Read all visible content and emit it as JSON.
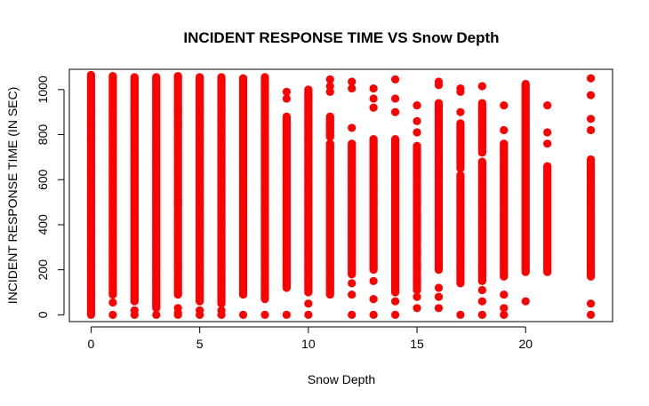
{
  "chart_data": {
    "type": "scatter",
    "title": "INCIDENT RESPONSE TIME VS Snow Depth",
    "xlabel": "Snow Depth",
    "ylabel": "INCIDENT RESPONSE TIME (IN SEC)",
    "xlim": [
      -1,
      24
    ],
    "ylim": [
      -30,
      1090
    ],
    "x_ticks": [
      0,
      5,
      10,
      15,
      20
    ],
    "y_ticks": [
      0,
      200,
      400,
      600,
      800,
      1000
    ],
    "grid": false,
    "legend": "none",
    "point_color": "#ff0000",
    "series": [
      {
        "columns": [
          {
            "x": 0,
            "ranges": [
              [
                0,
                1065
              ]
            ],
            "points": []
          },
          {
            "x": 1,
            "ranges": [
              [
                90,
                1060
              ]
            ],
            "points": [
              55,
              0
            ]
          },
          {
            "x": 2,
            "ranges": [
              [
                60,
                1055
              ]
            ],
            "points": [
              20,
              0
            ]
          },
          {
            "x": 3,
            "ranges": [
              [
                30,
                1055
              ]
            ],
            "points": [
              0
            ]
          },
          {
            "x": 4,
            "ranges": [
              [
                90,
                1060
              ]
            ],
            "points": [
              30,
              10,
              0
            ]
          },
          {
            "x": 5,
            "ranges": [
              [
                60,
                1055
              ]
            ],
            "points": [
              20,
              0
            ]
          },
          {
            "x": 6,
            "ranges": [
              [
                50,
                1055
              ]
            ],
            "points": [
              20,
              0
            ]
          },
          {
            "x": 7,
            "ranges": [
              [
                90,
                1050
              ]
            ],
            "points": [
              0
            ]
          },
          {
            "x": 8,
            "ranges": [
              [
                70,
                1055
              ]
            ],
            "points": [
              0
            ]
          },
          {
            "x": 9,
            "ranges": [
              [
                120,
                880
              ]
            ],
            "points": [
              990,
              960,
              0
            ]
          },
          {
            "x": 10,
            "ranges": [
              [
                100,
                1000
              ]
            ],
            "points": [
              50,
              0
            ]
          },
          {
            "x": 11,
            "ranges": [
              [
                90,
                760
              ],
              [
                790,
                880
              ]
            ],
            "points": [
              1045,
              1015,
              990
            ]
          },
          {
            "x": 12,
            "ranges": [
              [
                180,
                760
              ]
            ],
            "points": [
              1035,
              1005,
              830,
              140,
              90,
              0
            ]
          },
          {
            "x": 13,
            "ranges": [
              [
                200,
                780
              ]
            ],
            "points": [
              1005,
              960,
              920,
              150,
              70,
              0
            ]
          },
          {
            "x": 14,
            "ranges": [
              [
                100,
                780
              ]
            ],
            "points": [
              1045,
              960,
              900,
              60,
              0
            ]
          },
          {
            "x": 15,
            "ranges": [
              [
                110,
                750
              ]
            ],
            "points": [
              930,
              860,
              810,
              80,
              30
            ]
          },
          {
            "x": 16,
            "ranges": [
              [
                200,
                940
              ]
            ],
            "points": [
              1035,
              1020,
              120,
              80,
              30
            ]
          },
          {
            "x": 17,
            "ranges": [
              [
                140,
                620
              ],
              [
                650,
                850
              ]
            ],
            "points": [
              1005,
              990,
              900,
              0
            ]
          },
          {
            "x": 18,
            "ranges": [
              [
                150,
                680
              ],
              [
                720,
                940
              ]
            ],
            "points": [
              1015,
              110,
              60,
              0
            ]
          },
          {
            "x": 19,
            "ranges": [
              [
                170,
                760
              ]
            ],
            "points": [
              930,
              820,
              90,
              30,
              0
            ]
          },
          {
            "x": 20,
            "ranges": [
              [
                190,
                1025
              ]
            ],
            "points": [
              60
            ]
          },
          {
            "x": 21,
            "ranges": [
              [
                190,
                660
              ]
            ],
            "points": [
              930,
              810,
              760
            ]
          },
          {
            "x": 23,
            "ranges": [
              [
                170,
                690
              ]
            ],
            "points": [
              1050,
              975,
              870,
              820,
              50,
              0
            ]
          }
        ]
      }
    ]
  }
}
